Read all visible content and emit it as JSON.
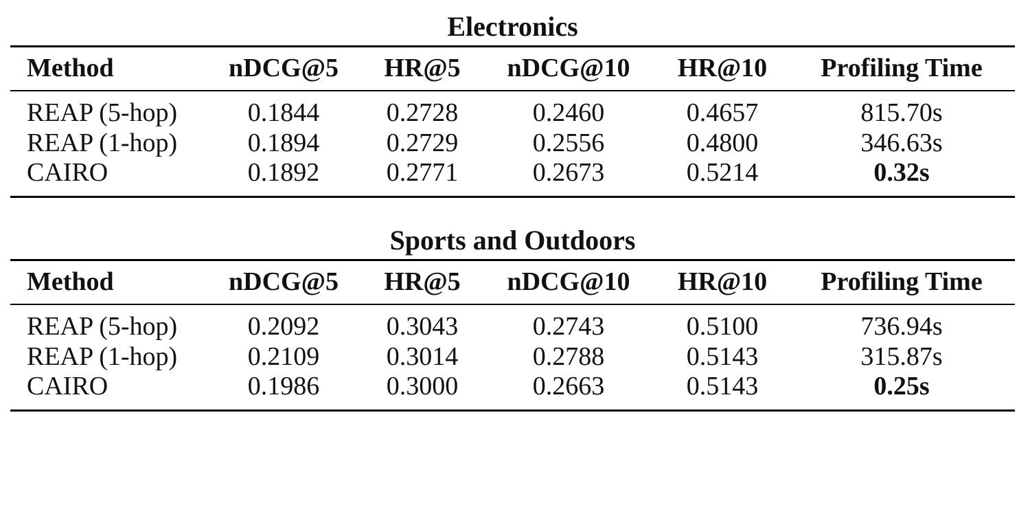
{
  "tables": [
    {
      "title": "Electronics",
      "headers": [
        "Method",
        "nDCG@5",
        "HR@5",
        "nDCG@10",
        "HR@10",
        "Profiling Time"
      ],
      "rows": [
        {
          "method": "REAP (5-hop)",
          "ndcg5": "0.1844",
          "hr5": "0.2728",
          "ndcg10": "0.2460",
          "hr10": "0.4657",
          "time": "815.70s"
        },
        {
          "method": "REAP (1-hop)",
          "ndcg5": "0.1894",
          "hr5": "0.2729",
          "ndcg10": "0.2556",
          "hr10": "0.4800",
          "time": "346.63s"
        },
        {
          "method": "CAIRO",
          "ndcg5": "0.1892",
          "hr5": "0.2771",
          "ndcg10": "0.2673",
          "hr10": "0.5214",
          "time": "0.32s"
        }
      ]
    },
    {
      "title": "Sports and Outdoors",
      "headers": [
        "Method",
        "nDCG@5",
        "HR@5",
        "nDCG@10",
        "HR@10",
        "Profiling Time"
      ],
      "rows": [
        {
          "method": "REAP (5-hop)",
          "ndcg5": "0.2092",
          "hr5": "0.3043",
          "ndcg10": "0.2743",
          "hr10": "0.5100",
          "time": "736.94s"
        },
        {
          "method": "REAP (1-hop)",
          "ndcg5": "0.2109",
          "hr5": "0.3014",
          "ndcg10": "0.2788",
          "hr10": "0.5143",
          "time": "315.87s"
        },
        {
          "method": "CAIRO",
          "ndcg5": "0.1986",
          "hr5": "0.3000",
          "ndcg10": "0.2663",
          "hr10": "0.5143",
          "time": "0.25s"
        }
      ]
    }
  ]
}
